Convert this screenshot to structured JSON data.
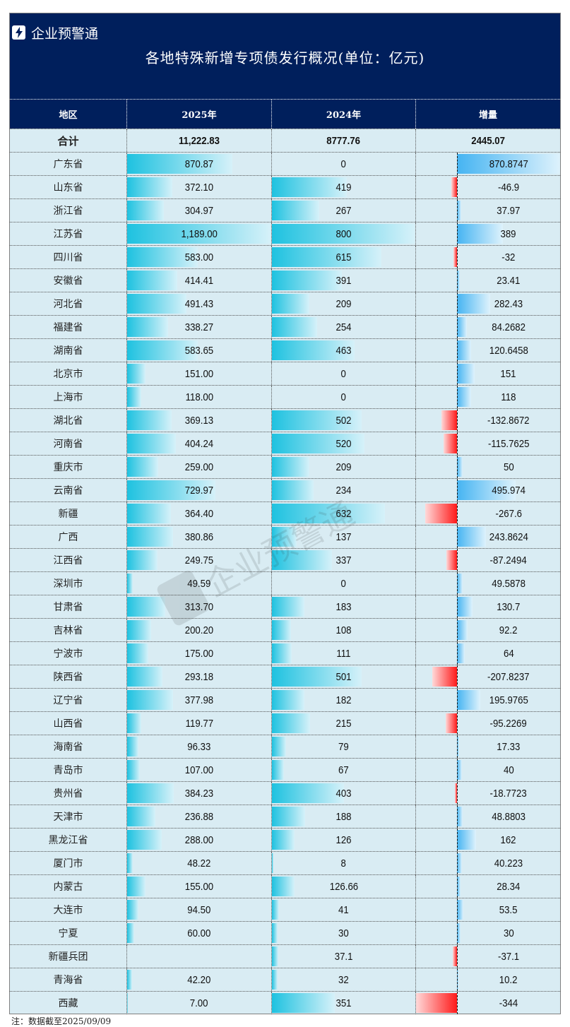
{
  "brand": {
    "name": "企业预警通",
    "icon": "lightning-icon"
  },
  "title": "各地特殊新增专项债发行概况(单位：亿元)",
  "columns": [
    "地区",
    "2025年",
    "2024年",
    "增量"
  ],
  "total": {
    "region": "合计",
    "y2025": "11,222.83",
    "y2024": "8777.76",
    "inc": "2445.07"
  },
  "colors": {
    "navy": "#001f5c",
    "cell_bg": "#d9ecf3",
    "bar_cyan": "#1ec2e0",
    "bar_pos": "#45b4f2",
    "bar_neg": "#ff1a1a"
  },
  "rows": [
    {
      "region": "广东省",
      "y2025": "870.87",
      "y2024": "0",
      "inc": "870.8747",
      "v25": 870.87,
      "v24": 0,
      "vinc": 870.8747
    },
    {
      "region": "山东省",
      "y2025": "372.10",
      "y2024": "419",
      "inc": "-46.9",
      "v25": 372.1,
      "v24": 419,
      "vinc": -46.9
    },
    {
      "region": "浙江省",
      "y2025": "304.97",
      "y2024": "267",
      "inc": "37.97",
      "v25": 304.97,
      "v24": 267,
      "vinc": 37.97
    },
    {
      "region": "江苏省",
      "y2025": "1,189.00",
      "y2024": "800",
      "inc": "389",
      "v25": 1189,
      "v24": 800,
      "vinc": 389
    },
    {
      "region": "四川省",
      "y2025": "583.00",
      "y2024": "615",
      "inc": "-32",
      "v25": 583,
      "v24": 615,
      "vinc": -32
    },
    {
      "region": "安徽省",
      "y2025": "414.41",
      "y2024": "391",
      "inc": "23.41",
      "v25": 414.41,
      "v24": 391,
      "vinc": 23.41
    },
    {
      "region": "河北省",
      "y2025": "491.43",
      "y2024": "209",
      "inc": "282.43",
      "v25": 491.43,
      "v24": 209,
      "vinc": 282.43
    },
    {
      "region": "福建省",
      "y2025": "338.27",
      "y2024": "254",
      "inc": "84.2682",
      "v25": 338.27,
      "v24": 254,
      "vinc": 84.2682
    },
    {
      "region": "湖南省",
      "y2025": "583.65",
      "y2024": "463",
      "inc": "120.6458",
      "v25": 583.65,
      "v24": 463,
      "vinc": 120.6458
    },
    {
      "region": "北京市",
      "y2025": "151.00",
      "y2024": "0",
      "inc": "151",
      "v25": 151,
      "v24": 0,
      "vinc": 151
    },
    {
      "region": "上海市",
      "y2025": "118.00",
      "y2024": "0",
      "inc": "118",
      "v25": 118,
      "v24": 0,
      "vinc": 118
    },
    {
      "region": "湖北省",
      "y2025": "369.13",
      "y2024": "502",
      "inc": "-132.8672",
      "v25": 369.13,
      "v24": 502,
      "vinc": -132.8672
    },
    {
      "region": "河南省",
      "y2025": "404.24",
      "y2024": "520",
      "inc": "-115.7625",
      "v25": 404.24,
      "v24": 520,
      "vinc": -115.7625
    },
    {
      "region": "重庆市",
      "y2025": "259.00",
      "y2024": "209",
      "inc": "50",
      "v25": 259,
      "v24": 209,
      "vinc": 50
    },
    {
      "region": "云南省",
      "y2025": "729.97",
      "y2024": "234",
      "inc": "495.974",
      "v25": 729.97,
      "v24": 234,
      "vinc": 495.974
    },
    {
      "region": "新疆",
      "y2025": "364.40",
      "y2024": "632",
      "inc": "-267.6",
      "v25": 364.4,
      "v24": 632,
      "vinc": -267.6
    },
    {
      "region": "广西",
      "y2025": "380.86",
      "y2024": "137",
      "inc": "243.8624",
      "v25": 380.86,
      "v24": 137,
      "vinc": 243.8624
    },
    {
      "region": "江西省",
      "y2025": "249.75",
      "y2024": "337",
      "inc": "-87.2494",
      "v25": 249.75,
      "v24": 337,
      "vinc": -87.2494
    },
    {
      "region": "深圳市",
      "y2025": "49.59",
      "y2024": "0",
      "inc": "49.5878",
      "v25": 49.59,
      "v24": 0,
      "vinc": 49.5878
    },
    {
      "region": "甘肃省",
      "y2025": "313.70",
      "y2024": "183",
      "inc": "130.7",
      "v25": 313.7,
      "v24": 183,
      "vinc": 130.7
    },
    {
      "region": "吉林省",
      "y2025": "200.20",
      "y2024": "108",
      "inc": "92.2",
      "v25": 200.2,
      "v24": 108,
      "vinc": 92.2
    },
    {
      "region": "宁波市",
      "y2025": "175.00",
      "y2024": "111",
      "inc": "64",
      "v25": 175,
      "v24": 111,
      "vinc": 64
    },
    {
      "region": "陕西省",
      "y2025": "293.18",
      "y2024": "501",
      "inc": "-207.8237",
      "v25": 293.18,
      "v24": 501,
      "vinc": -207.8237
    },
    {
      "region": "辽宁省",
      "y2025": "377.98",
      "y2024": "182",
      "inc": "195.9765",
      "v25": 377.98,
      "v24": 182,
      "vinc": 195.9765
    },
    {
      "region": "山西省",
      "y2025": "119.77",
      "y2024": "215",
      "inc": "-95.2269",
      "v25": 119.77,
      "v24": 215,
      "vinc": -95.2269
    },
    {
      "region": "海南省",
      "y2025": "96.33",
      "y2024": "79",
      "inc": "17.33",
      "v25": 96.33,
      "v24": 79,
      "vinc": 17.33
    },
    {
      "region": "青岛市",
      "y2025": "107.00",
      "y2024": "67",
      "inc": "40",
      "v25": 107,
      "v24": 67,
      "vinc": 40
    },
    {
      "region": "贵州省",
      "y2025": "384.23",
      "y2024": "403",
      "inc": "-18.7723",
      "v25": 384.23,
      "v24": 403,
      "vinc": -18.7723
    },
    {
      "region": "天津市",
      "y2025": "236.88",
      "y2024": "188",
      "inc": "48.8803",
      "v25": 236.88,
      "v24": 188,
      "vinc": 48.8803
    },
    {
      "region": "黑龙江省",
      "y2025": "288.00",
      "y2024": "126",
      "inc": "162",
      "v25": 288,
      "v24": 126,
      "vinc": 162
    },
    {
      "region": "厦门市",
      "y2025": "48.22",
      "y2024": "8",
      "inc": "40.223",
      "v25": 48.22,
      "v24": 8,
      "vinc": 40.223
    },
    {
      "region": "内蒙古",
      "y2025": "155.00",
      "y2024": "126.66",
      "inc": "28.34",
      "v25": 155,
      "v24": 126.66,
      "vinc": 28.34
    },
    {
      "region": "大连市",
      "y2025": "94.50",
      "y2024": "41",
      "inc": "53.5",
      "v25": 94.5,
      "v24": 41,
      "vinc": 53.5
    },
    {
      "region": "宁夏",
      "y2025": "60.00",
      "y2024": "30",
      "inc": "30",
      "v25": 60,
      "v24": 30,
      "vinc": 30
    },
    {
      "region": "新疆兵团",
      "y2025": "",
      "y2024": "37.1",
      "inc": "-37.1",
      "v25": 0,
      "v24": 37.1,
      "vinc": -37.1
    },
    {
      "region": "青海省",
      "y2025": "42.20",
      "y2024": "32",
      "inc": "10.2",
      "v25": 42.2,
      "v24": 32,
      "vinc": 10.2
    },
    {
      "region": "西藏",
      "y2025": "7.00",
      "y2024": "351",
      "inc": "-344",
      "v25": 7,
      "v24": 351,
      "vinc": -344
    }
  ],
  "footnote": "注：数据截至2025/09/09",
  "watermark": "企业预警通"
}
